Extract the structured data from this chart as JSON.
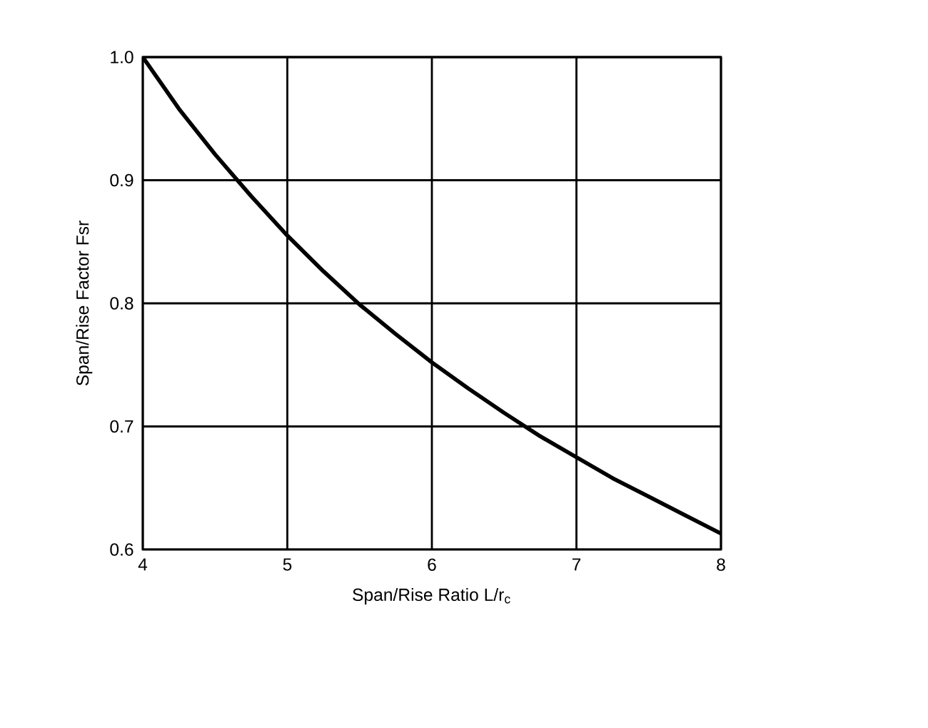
{
  "chart_data": {
    "type": "line",
    "xlabel": "Span/Rise Ratio L/r$_{c}$",
    "ylabel": "Span/Rise Factor Fsr",
    "x": [
      4,
      4.25,
      4.5,
      4.75,
      5,
      5.25,
      5.5,
      5.75,
      6,
      6.25,
      6.5,
      6.75,
      7,
      7.25,
      7.5,
      7.75,
      8
    ],
    "series": [
      {
        "color": "#000000",
        "values": [
          1.0,
          0.958,
          0.921,
          0.887,
          0.855,
          0.826,
          0.799,
          0.775,
          0.752,
          0.731,
          0.711,
          0.692,
          0.675,
          0.658,
          0.643,
          0.628,
          0.613
        ]
      }
    ],
    "xlim": [
      4,
      8
    ],
    "ylim": [
      0.6,
      1.0
    ],
    "xticks": [
      4,
      5,
      6,
      7,
      8
    ],
    "yticks": [
      0.6,
      0.7,
      0.8,
      0.9,
      {
        "value": 1.0,
        "label": "1.0"
      }
    ],
    "grid": true,
    "marker": "none",
    "line_style": "solid"
  }
}
